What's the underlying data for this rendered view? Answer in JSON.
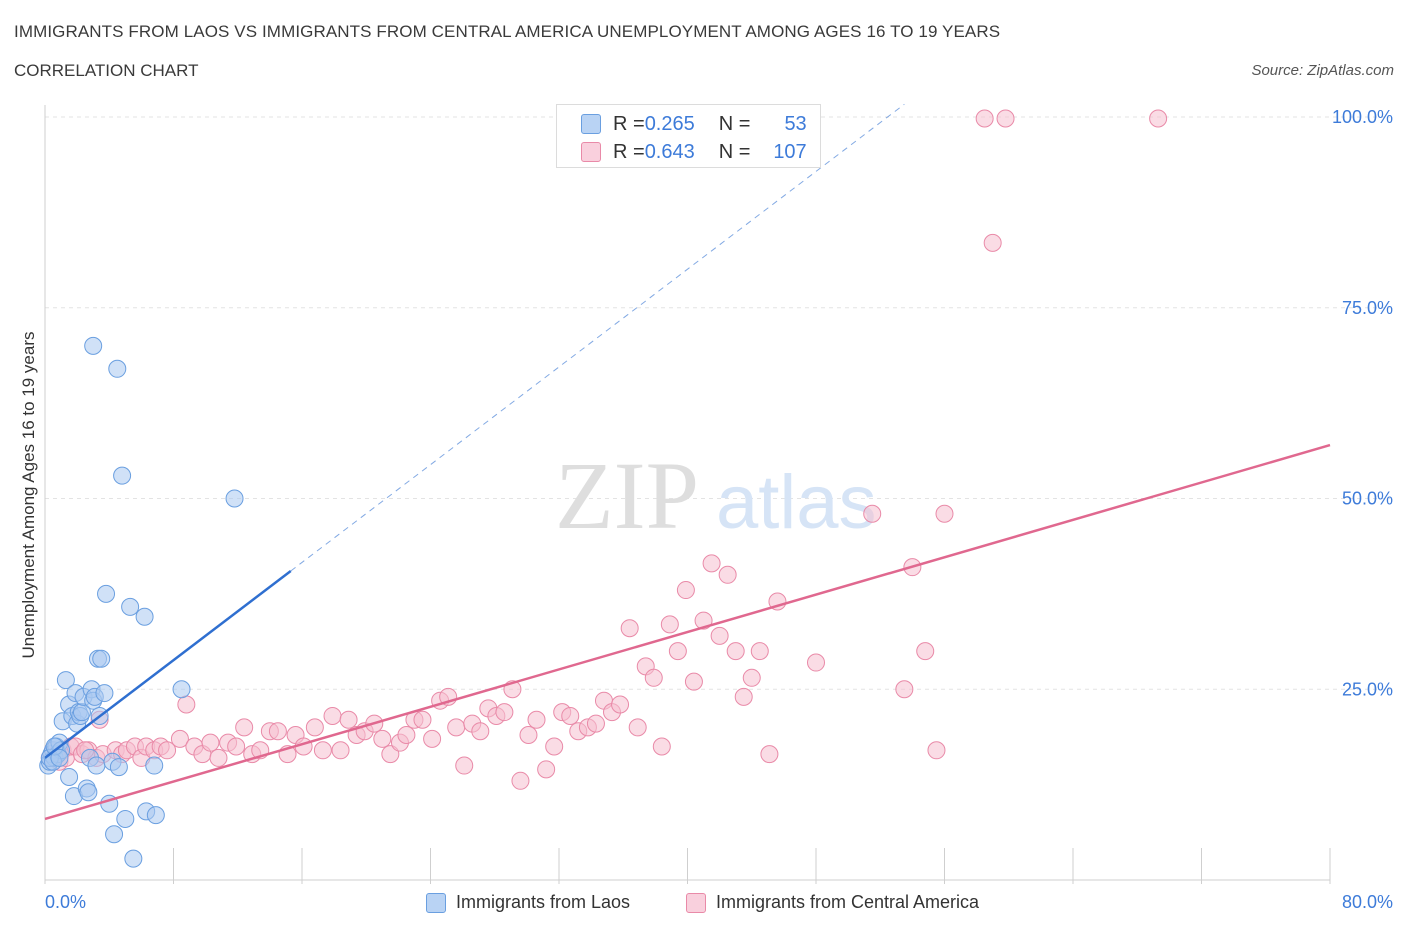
{
  "title": "IMMIGRANTS FROM LAOS VS IMMIGRANTS FROM CENTRAL AMERICA UNEMPLOYMENT AMONG AGES 16 TO 19 YEARS",
  "subtitle": "CORRELATION CHART",
  "source": "Source: ZipAtlas.com",
  "watermark": {
    "zip": "ZIP",
    "atlas": "atlas"
  },
  "stats": [
    {
      "r_label": "R = ",
      "r_value": "0.265",
      "n_label": "N = ",
      "n_value": "53"
    },
    {
      "r_label": "R = ",
      "r_value": "0.643",
      "n_label": "N = ",
      "n_value": "107"
    }
  ],
  "colors": {
    "laos_fill": "#a9c8f0",
    "laos_stroke": "#6a9fe0",
    "laos_line": "#2f6fd0",
    "ca_fill": "#f6bfd0",
    "ca_stroke": "#e98aa8",
    "ca_line": "#e0688f",
    "tick_label": "#3d7bd9",
    "grid": "#e3e3e3"
  },
  "chart_data": {
    "type": "scatter",
    "title": "IMMIGRANTS FROM LAOS VS IMMIGRANTS FROM CENTRAL AMERICA UNEMPLOYMENT AMONG AGES 16 TO 19 YEARS",
    "xlabel": "",
    "ylabel": "Unemployment Among Ages 16 to 19 years",
    "xlim": [
      0,
      80
    ],
    "ylim": [
      0,
      100
    ],
    "x_tick_labels": [
      "0.0%",
      "80.0%"
    ],
    "y_tick_labels": [
      "25.0%",
      "50.0%",
      "75.0%",
      "100.0%"
    ],
    "y_ticks": [
      25,
      50,
      75,
      100
    ],
    "grid": true,
    "legend": "bottom-center",
    "series": [
      {
        "name": "Immigrants from Laos",
        "trend": {
          "x0": 0,
          "y0": 16.0,
          "x1": 15.3,
          "y1": 40.5,
          "dashed_to_x": 53.5
        },
        "points": [
          [
            0.2,
            15.0
          ],
          [
            0.3,
            15.5
          ],
          [
            0.4,
            16.5
          ],
          [
            0.5,
            17.0
          ],
          [
            0.6,
            16.0
          ],
          [
            0.7,
            17.5
          ],
          [
            0.8,
            16.5
          ],
          [
            0.9,
            18.0
          ],
          [
            1.0,
            17.0
          ],
          [
            0.3,
            16.0
          ],
          [
            0.5,
            15.5
          ],
          [
            0.6,
            17.5
          ],
          [
            0.9,
            16.0
          ],
          [
            1.1,
            20.8
          ],
          [
            1.3,
            26.2
          ],
          [
            1.5,
            23.0
          ],
          [
            1.7,
            21.5
          ],
          [
            1.8,
            11.0
          ],
          [
            1.9,
            24.5
          ],
          [
            2.0,
            20.5
          ],
          [
            2.1,
            22.0
          ],
          [
            2.2,
            21.5
          ],
          [
            2.3,
            22.0
          ],
          [
            2.4,
            24.0
          ],
          [
            2.6,
            12.0
          ],
          [
            2.8,
            16.0
          ],
          [
            2.9,
            25.0
          ],
          [
            3.0,
            23.5
          ],
          [
            3.1,
            24.0
          ],
          [
            3.2,
            15.0
          ],
          [
            3.3,
            29.0
          ],
          [
            3.4,
            21.5
          ],
          [
            3.5,
            29.0
          ],
          [
            3.7,
            24.5
          ],
          [
            3.8,
            37.5
          ],
          [
            4.0,
            10.0
          ],
          [
            4.2,
            15.5
          ],
          [
            4.3,
            6.0
          ],
          [
            4.5,
            67.0
          ],
          [
            4.6,
            14.8
          ],
          [
            4.8,
            53.0
          ],
          [
            5.0,
            8.0
          ],
          [
            5.3,
            35.8
          ],
          [
            5.5,
            2.8
          ],
          [
            6.2,
            34.5
          ],
          [
            6.3,
            9.0
          ],
          [
            6.8,
            15.0
          ],
          [
            6.9,
            8.5
          ],
          [
            8.5,
            25.0
          ],
          [
            11.8,
            50.0
          ],
          [
            3.0,
            70.0
          ],
          [
            1.5,
            13.5
          ],
          [
            2.7,
            11.5
          ]
        ]
      },
      {
        "name": "Immigrants from Central America",
        "trend": {
          "x0": 0,
          "y0": 8.0,
          "x1": 80,
          "y1": 57.0
        },
        "points": [
          [
            0.3,
            16.0
          ],
          [
            0.5,
            17.0
          ],
          [
            0.7,
            16.5
          ],
          [
            0.9,
            15.5
          ],
          [
            1.1,
            17.0
          ],
          [
            1.3,
            16.0
          ],
          [
            1.6,
            17.5
          ],
          [
            1.9,
            17.5
          ],
          [
            2.3,
            16.5
          ],
          [
            2.7,
            17.0
          ],
          [
            3.2,
            16.0
          ],
          [
            3.4,
            21.0
          ],
          [
            3.6,
            16.5
          ],
          [
            4.4,
            17.0
          ],
          [
            4.8,
            16.5
          ],
          [
            5.1,
            17.0
          ],
          [
            5.6,
            17.5
          ],
          [
            6.0,
            16.0
          ],
          [
            6.3,
            17.5
          ],
          [
            6.8,
            17.0
          ],
          [
            7.2,
            17.5
          ],
          [
            7.6,
            17.0
          ],
          [
            8.4,
            18.5
          ],
          [
            8.8,
            23.0
          ],
          [
            9.3,
            17.5
          ],
          [
            9.8,
            16.5
          ],
          [
            10.3,
            18.0
          ],
          [
            10.8,
            16.0
          ],
          [
            11.4,
            18.0
          ],
          [
            11.9,
            17.5
          ],
          [
            12.4,
            20.0
          ],
          [
            12.9,
            16.5
          ],
          [
            13.4,
            17.0
          ],
          [
            14.0,
            19.5
          ],
          [
            14.5,
            19.5
          ],
          [
            15.1,
            16.5
          ],
          [
            15.6,
            19.0
          ],
          [
            16.1,
            17.5
          ],
          [
            16.8,
            20.0
          ],
          [
            17.3,
            17.0
          ],
          [
            17.9,
            21.5
          ],
          [
            18.4,
            17.0
          ],
          [
            18.9,
            21.0
          ],
          [
            19.4,
            19.0
          ],
          [
            19.9,
            19.5
          ],
          [
            20.5,
            20.5
          ],
          [
            21.0,
            18.5
          ],
          [
            21.5,
            16.5
          ],
          [
            22.1,
            18.0
          ],
          [
            22.5,
            19.0
          ],
          [
            23.0,
            21.0
          ],
          [
            23.5,
            21.0
          ],
          [
            24.1,
            18.5
          ],
          [
            24.6,
            23.5
          ],
          [
            25.1,
            24.0
          ],
          [
            25.6,
            20.0
          ],
          [
            26.1,
            15.0
          ],
          [
            26.6,
            20.5
          ],
          [
            27.1,
            19.5
          ],
          [
            27.6,
            22.5
          ],
          [
            28.1,
            21.5
          ],
          [
            28.6,
            22.0
          ],
          [
            29.1,
            25.0
          ],
          [
            29.6,
            13.0
          ],
          [
            30.1,
            19.0
          ],
          [
            30.6,
            21.0
          ],
          [
            31.2,
            14.5
          ],
          [
            31.7,
            17.5
          ],
          [
            32.2,
            22.0
          ],
          [
            32.7,
            21.5
          ],
          [
            33.2,
            19.5
          ],
          [
            33.8,
            20.0
          ],
          [
            34.3,
            20.5
          ],
          [
            34.8,
            23.5
          ],
          [
            35.3,
            22.0
          ],
          [
            35.8,
            23.0
          ],
          [
            36.4,
            33.0
          ],
          [
            36.9,
            20.0
          ],
          [
            37.4,
            28.0
          ],
          [
            37.9,
            26.5
          ],
          [
            38.4,
            17.5
          ],
          [
            38.9,
            33.5
          ],
          [
            39.4,
            30.0
          ],
          [
            39.9,
            38.0
          ],
          [
            40.4,
            26.0
          ],
          [
            41.0,
            34.0
          ],
          [
            41.5,
            41.5
          ],
          [
            42.0,
            32.0
          ],
          [
            42.5,
            40.0
          ],
          [
            43.0,
            30.0
          ],
          [
            43.5,
            24.0
          ],
          [
            44.0,
            26.5
          ],
          [
            44.5,
            30.0
          ],
          [
            45.1,
            16.5
          ],
          [
            45.6,
            36.5
          ],
          [
            48.0,
            28.5
          ],
          [
            51.5,
            48.0
          ],
          [
            53.5,
            25.0
          ],
          [
            54.0,
            41.0
          ],
          [
            54.8,
            30.0
          ],
          [
            55.5,
            17.0
          ],
          [
            56.0,
            48.0
          ],
          [
            58.5,
            99.8
          ],
          [
            59.0,
            83.5
          ],
          [
            59.8,
            99.8
          ],
          [
            69.3,
            99.8
          ],
          [
            2.5,
            17.0
          ]
        ]
      }
    ]
  }
}
